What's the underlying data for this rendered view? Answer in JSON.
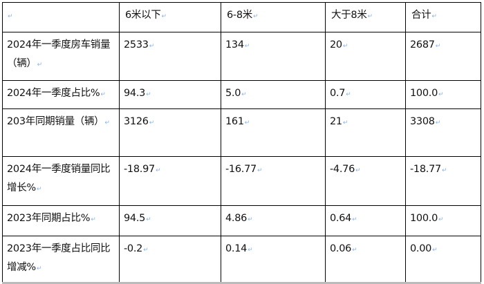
{
  "table": {
    "header": [
      "",
      "6米以下",
      "6-8米",
      "大于8米",
      "合计"
    ],
    "rows": [
      {
        "label": "2024年一季度房车销量（辆）",
        "values": [
          "2533",
          "134",
          "20",
          "2687"
        ]
      },
      {
        "label": "2024年一季度占比%",
        "values": [
          "94.3",
          "5.0",
          "0.7",
          "100.0"
        ]
      },
      {
        "label": "203年同期销量（辆）",
        "values": [
          "3126",
          "161",
          "21",
          "3308"
        ]
      },
      {
        "label": "2024年一季度销量同比增长%",
        "values": [
          "-18.97",
          "-16.77",
          "-4.76",
          "-18.77"
        ]
      },
      {
        "label": "2023年同期占比%",
        "values": [
          "94.5",
          "4.86",
          "0.64",
          "100.0"
        ]
      },
      {
        "label": "2023年一季度占比同比增减%",
        "values": [
          "-0.2",
          "0.14",
          "0.06",
          "0.00"
        ]
      }
    ]
  },
  "return_mark": "↵"
}
